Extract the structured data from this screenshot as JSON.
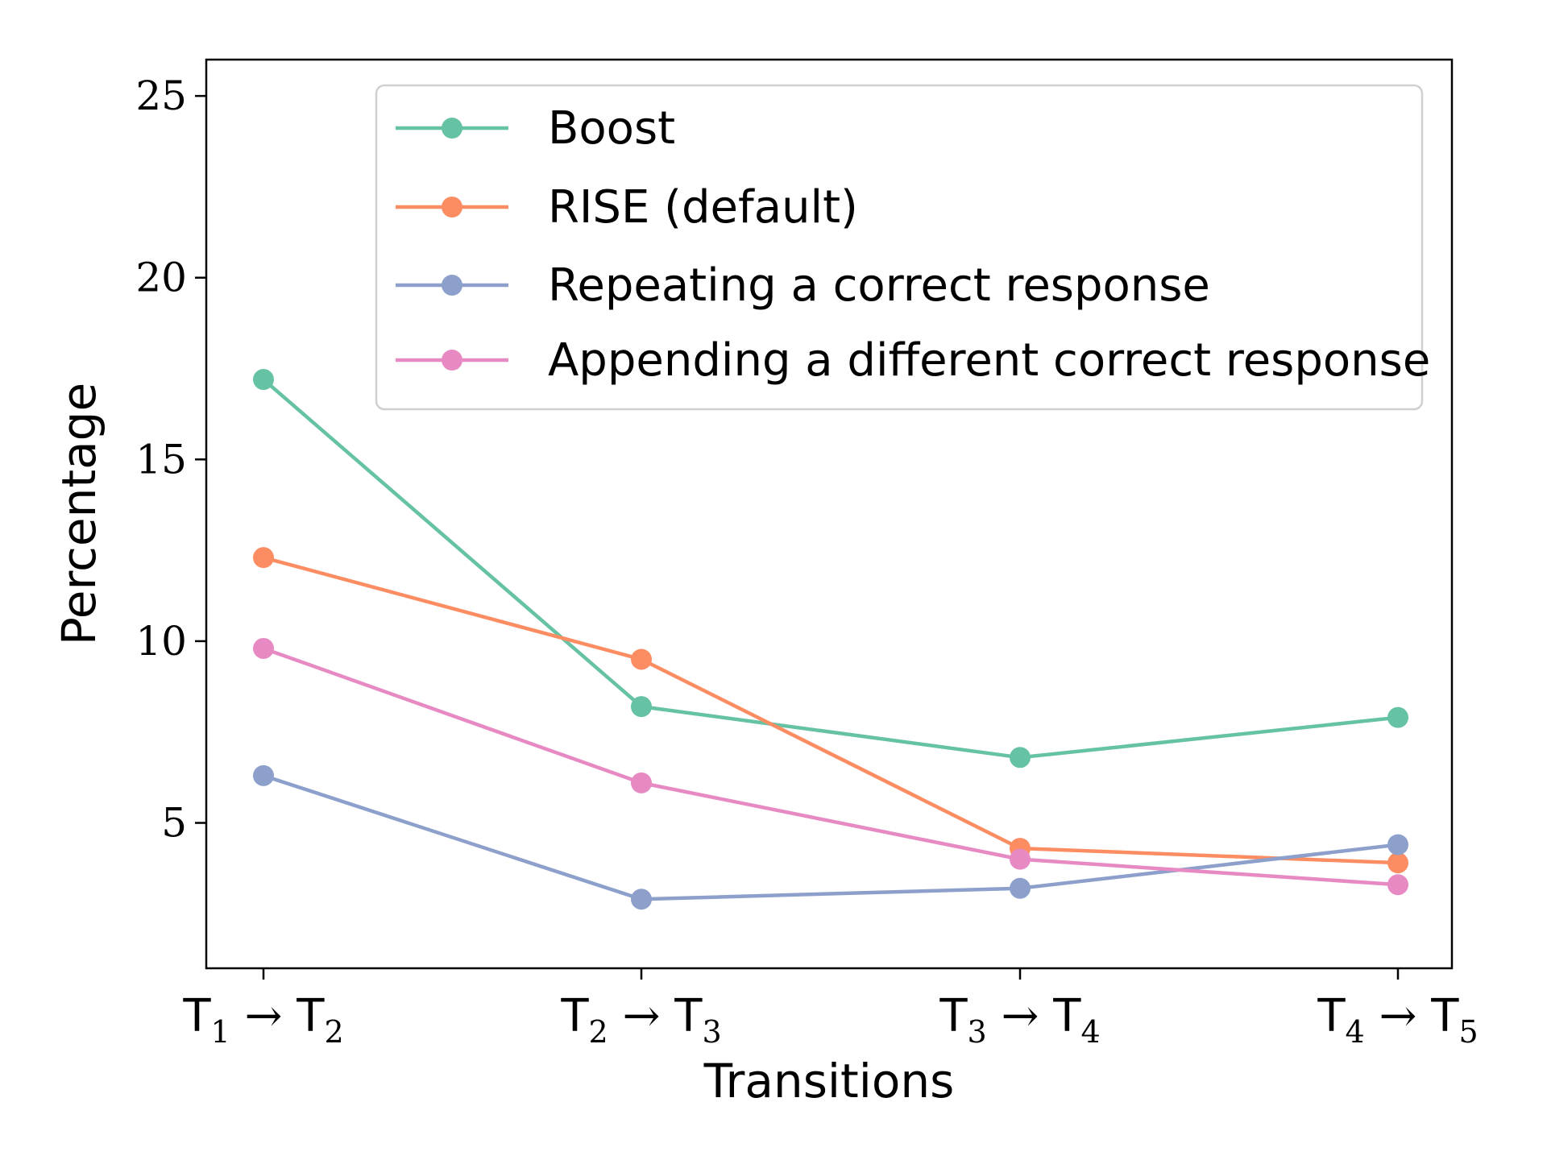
{
  "chart_data": {
    "type": "line",
    "title": "",
    "xlabel": "Transitions",
    "ylabel": "Percentage",
    "ylim": [
      1,
      26
    ],
    "yticks": [
      5,
      10,
      15,
      20,
      25
    ],
    "grid": false,
    "legend_position": "top-right",
    "categories": [
      {
        "base1": "T",
        "sub1": "1",
        "arrow": "→",
        "base2": "T",
        "sub2": "2"
      },
      {
        "base1": "T",
        "sub1": "2",
        "arrow": "→",
        "base2": "T",
        "sub2": "3"
      },
      {
        "base1": "T",
        "sub1": "3",
        "arrow": "→",
        "base2": "T",
        "sub2": "4"
      },
      {
        "base1": "T",
        "sub1": "4",
        "arrow": "→",
        "base2": "T",
        "sub2": "5"
      }
    ],
    "series": [
      {
        "name": "Boost",
        "color": "#66c2a5",
        "values": [
          17.2,
          8.2,
          6.8,
          7.9
        ]
      },
      {
        "name": "RISE (default)",
        "color": "#fc8d62",
        "values": [
          12.3,
          9.5,
          4.3,
          3.9
        ]
      },
      {
        "name": "Repeating a correct response",
        "color": "#8da0cb",
        "values": [
          6.3,
          2.9,
          3.2,
          4.4
        ]
      },
      {
        "name": "Appending a different correct response",
        "color": "#e78ac3",
        "values": [
          9.8,
          6.1,
          4.0,
          3.3
        ]
      }
    ]
  }
}
